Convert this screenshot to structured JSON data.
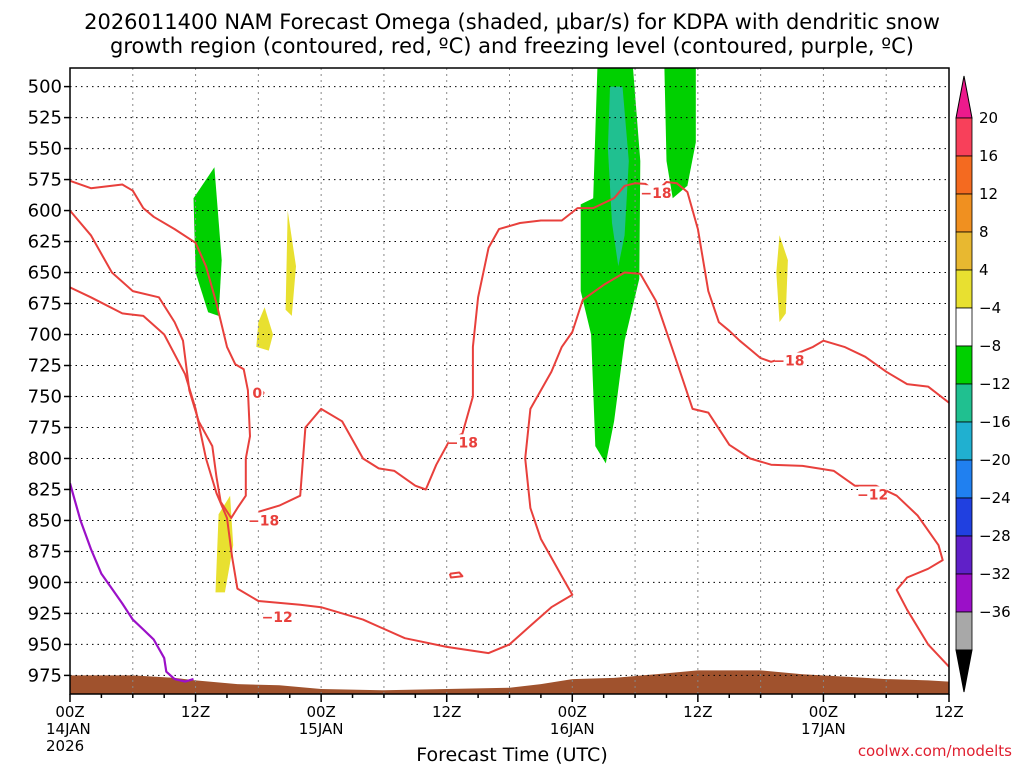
{
  "title_line1": "2026011400 NAM Forecast Omega (shaded, μbar/s) for KDPA with dendritic snow",
  "title_line2": "growth region (contoured, red, ºC) and freezing level (contoured, purple, ºC)",
  "x_axis_title": "Forecast Time (UTC)",
  "credit": "coolwx.com/modelts",
  "colors": {
    "dgz_contour": "#e8403c",
    "freezing_level": "#9b10c8",
    "terrain": "#a0522d",
    "omega_green": "#00d000",
    "omega_teal": "#20c090",
    "omega_yellow": "#e8e030",
    "grid": "#888888"
  },
  "chart_data": {
    "type": "heatmap",
    "x_unit": "forecast hour from 2026-01-14 00Z",
    "xlim": [
      0,
      84
    ],
    "ylim": [
      990,
      485
    ],
    "y_ticks": [
      500,
      525,
      550,
      575,
      600,
      625,
      650,
      675,
      700,
      725,
      750,
      775,
      800,
      825,
      850,
      875,
      900,
      925,
      950,
      975
    ],
    "x_ticks": [
      {
        "x": 0,
        "l1": "00Z",
        "l2": "14JAN",
        "l3": "2026"
      },
      {
        "x": 12,
        "l1": "12Z",
        "l2": "",
        "l3": ""
      },
      {
        "x": 24,
        "l1": "00Z",
        "l2": "15JAN",
        "l3": ""
      },
      {
        "x": 36,
        "l1": "12Z",
        "l2": "",
        "l3": ""
      },
      {
        "x": 48,
        "l1": "00Z",
        "l2": "16JAN",
        "l3": ""
      },
      {
        "x": 60,
        "l1": "12Z",
        "l2": "",
        "l3": ""
      },
      {
        "x": 72,
        "l1": "00Z",
        "l2": "17JAN",
        "l3": ""
      },
      {
        "x": 84,
        "l1": "12Z",
        "l2": "",
        "l3": ""
      }
    ],
    "colorbar": {
      "labels": [
        "20",
        "16",
        "12",
        "8",
        "4",
        "−4",
        "−8",
        "−12",
        "−16",
        "−20",
        "−24",
        "−28",
        "−32",
        "−36"
      ],
      "colors": [
        "#f8405a",
        "#f46a20",
        "#f09020",
        "#e8b830",
        "#e8e030",
        "#ffffff",
        "#00d000",
        "#20c090",
        "#20b0d0",
        "#2080f0",
        "#2040e0",
        "#6020c8",
        "#9b10c8",
        "#a8a8a8"
      ],
      "top_arrow": "#ec1a8c",
      "bottom_arrow": "#000000"
    },
    "omega_regions": [
      {
        "color": "omega_green",
        "points": [
          [
            11.8,
            590
          ],
          [
            13.8,
            565
          ],
          [
            14.5,
            640
          ],
          [
            14.2,
            685
          ],
          [
            13.2,
            682
          ],
          [
            12,
            650
          ]
        ]
      },
      {
        "color": "omega_yellow",
        "points": [
          [
            20.8,
            600
          ],
          [
            21.6,
            645
          ],
          [
            21.2,
            685
          ],
          [
            20.6,
            680
          ]
        ]
      },
      {
        "color": "omega_yellow",
        "points": [
          [
            18.6,
            678
          ],
          [
            19.4,
            700
          ],
          [
            19.0,
            713
          ],
          [
            17.8,
            710
          ],
          [
            18.0,
            690
          ]
        ]
      },
      {
        "color": "omega_yellow",
        "points": [
          [
            14.2,
            845
          ],
          [
            15.3,
            830
          ],
          [
            15.6,
            870
          ],
          [
            14.8,
            908
          ],
          [
            13.9,
            908
          ]
        ]
      },
      {
        "color": "omega_green",
        "points": [
          [
            50.4,
            485
          ],
          [
            53.8,
            485
          ],
          [
            54.5,
            560
          ],
          [
            54.4,
            655
          ],
          [
            53.0,
            705
          ],
          [
            52.0,
            770
          ],
          [
            51.2,
            804
          ],
          [
            50.2,
            790
          ],
          [
            49.8,
            700
          ],
          [
            48.8,
            665
          ],
          [
            48.8,
            595
          ],
          [
            50.0,
            590
          ]
        ]
      },
      {
        "color": "omega_teal",
        "points": [
          [
            51.6,
            500
          ],
          [
            52.8,
            500
          ],
          [
            53.4,
            560
          ],
          [
            53.0,
            620
          ],
          [
            52.4,
            645
          ],
          [
            51.8,
            610
          ],
          [
            51.4,
            550
          ]
        ]
      },
      {
        "color": "omega_green",
        "points": [
          [
            56.8,
            485
          ],
          [
            59.8,
            485
          ],
          [
            59.8,
            545
          ],
          [
            59.0,
            580
          ],
          [
            57.6,
            590
          ],
          [
            57.0,
            560
          ]
        ]
      },
      {
        "color": "omega_yellow",
        "points": [
          [
            67.8,
            620
          ],
          [
            68.6,
            640
          ],
          [
            68.4,
            683
          ],
          [
            67.8,
            690
          ],
          [
            67.5,
            650
          ]
        ]
      }
    ],
    "dgz_contours": [
      {
        "points": [
          [
            0,
            576
          ],
          [
            2,
            582
          ],
          [
            4,
            580
          ],
          [
            5,
            579
          ],
          [
            6,
            584
          ],
          [
            7,
            598
          ],
          [
            8,
            605
          ],
          [
            10,
            615
          ],
          [
            12,
            626
          ],
          [
            13,
            645
          ],
          [
            14,
            675
          ],
          [
            15,
            710
          ],
          [
            15.8,
            724
          ],
          [
            16.6,
            728
          ],
          [
            17,
            745
          ],
          [
            17.2,
            782
          ],
          [
            16.8,
            800
          ],
          [
            16.8,
            830
          ],
          [
            16,
            840
          ],
          [
            15.4,
            848
          ],
          [
            14.4,
            835
          ],
          [
            14,
            815
          ],
          [
            13.6,
            790
          ],
          [
            12.3,
            770
          ],
          [
            11.4,
            745
          ],
          [
            10.8,
            705
          ],
          [
            10,
            690
          ],
          [
            8.5,
            670
          ],
          [
            6,
            665
          ],
          [
            4,
            650
          ],
          [
            2,
            620
          ],
          [
            0,
            600
          ]
        ]
      },
      {
        "points": [
          [
            18,
            742
          ],
          [
            18.5,
            747
          ],
          [
            18.2,
            752
          ],
          [
            17.9,
            748
          ],
          [
            18,
            742
          ]
        ]
      },
      {
        "points": [
          [
            0,
            662
          ],
          [
            2,
            670
          ],
          [
            5,
            683
          ],
          [
            7,
            685
          ],
          [
            9,
            700
          ],
          [
            11,
            732
          ],
          [
            12,
            760
          ],
          [
            13,
            800
          ],
          [
            14,
            828
          ],
          [
            15,
            848
          ],
          [
            15.5,
            880
          ],
          [
            16,
            905
          ],
          [
            18,
            915
          ],
          [
            22,
            918
          ],
          [
            24,
            920
          ],
          [
            28,
            930
          ],
          [
            32,
            945
          ],
          [
            36,
            952
          ],
          [
            40,
            957
          ],
          [
            42,
            950
          ],
          [
            44,
            935
          ],
          [
            46,
            920
          ],
          [
            47,
            915
          ],
          [
            48,
            910
          ],
          [
            47,
            895
          ],
          [
            46,
            880
          ],
          [
            45,
            865
          ],
          [
            44,
            840
          ],
          [
            43.5,
            800
          ],
          [
            44,
            760
          ],
          [
            46,
            730
          ],
          [
            47,
            710
          ],
          [
            48,
            698
          ],
          [
            49,
            672
          ],
          [
            51,
            660
          ],
          [
            53,
            650
          ],
          [
            54.5,
            651
          ],
          [
            56,
            673
          ],
          [
            57.5,
            710
          ],
          [
            58.5,
            735
          ],
          [
            59.5,
            760
          ],
          [
            61,
            763
          ],
          [
            63,
            789
          ],
          [
            65,
            800
          ],
          [
            67,
            805
          ],
          [
            70,
            806
          ],
          [
            73,
            810
          ],
          [
            75,
            822
          ],
          [
            77,
            822
          ],
          [
            79,
            830
          ],
          [
            81,
            846
          ],
          [
            83,
            870
          ],
          [
            83.4,
            882
          ],
          [
            82,
            889
          ],
          [
            80,
            896
          ],
          [
            79,
            906
          ],
          [
            80,
            922
          ],
          [
            82,
            950
          ],
          [
            84,
            968
          ]
        ]
      },
      {
        "points": [
          [
            36.3,
            893
          ],
          [
            37.2,
            892
          ],
          [
            37.5,
            895
          ],
          [
            36.4,
            896
          ],
          [
            36.3,
            893
          ]
        ]
      },
      {
        "points": [
          [
            18,
            843
          ],
          [
            20,
            838
          ],
          [
            22,
            830
          ],
          [
            22.5,
            775
          ],
          [
            24,
            760
          ],
          [
            26,
            770
          ],
          [
            28,
            800
          ],
          [
            29.5,
            808
          ],
          [
            31,
            810
          ],
          [
            33,
            822
          ],
          [
            34,
            825
          ],
          [
            35,
            805
          ],
          [
            36.3,
            785
          ],
          [
            37.5,
            780
          ],
          [
            38.5,
            750
          ],
          [
            38.5,
            710
          ],
          [
            39,
            670
          ],
          [
            40,
            630
          ],
          [
            41,
            615
          ],
          [
            43,
            610
          ],
          [
            45,
            608
          ],
          [
            47,
            608
          ],
          [
            48.5,
            598
          ],
          [
            50,
            598
          ],
          [
            51,
            594
          ],
          [
            52,
            590
          ],
          [
            53,
            580
          ],
          [
            54,
            578
          ],
          [
            55,
            578.5
          ],
          [
            56,
            585
          ],
          [
            57,
            577
          ],
          [
            58,
            578
          ],
          [
            59,
            585
          ],
          [
            60,
            615
          ],
          [
            61,
            665
          ],
          [
            62,
            690
          ],
          [
            63,
            697
          ],
          [
            64,
            705
          ],
          [
            65,
            712
          ],
          [
            66,
            719
          ],
          [
            67,
            722
          ],
          [
            69,
            717
          ],
          [
            71,
            710
          ],
          [
            72,
            705
          ],
          [
            74,
            710
          ],
          [
            76,
            718
          ],
          [
            78,
            730
          ],
          [
            80,
            740
          ],
          [
            82,
            742
          ],
          [
            84,
            755
          ]
        ]
      }
    ],
    "dgz_labels": [
      {
        "text": "−18",
        "x": 56.0,
        "y": 586
      },
      {
        "text": "−18",
        "x": 68.7,
        "y": 721
      },
      {
        "text": "−18",
        "x": 37.5,
        "y": 787
      },
      {
        "text": "−18",
        "x": 18.5,
        "y": 850
      },
      {
        "text": "−12",
        "x": 19.8,
        "y": 928
      },
      {
        "text": "−12",
        "x": 76.7,
        "y": 829
      },
      {
        "text": "0",
        "x": 17.9,
        "y": 747
      }
    ],
    "freezing_level": {
      "points": [
        [
          0,
          820
        ],
        [
          1,
          850
        ],
        [
          2,
          873
        ],
        [
          3,
          893
        ],
        [
          4,
          905
        ],
        [
          5,
          917
        ],
        [
          6,
          930
        ],
        [
          7,
          938
        ],
        [
          8,
          946
        ],
        [
          9,
          961
        ],
        [
          9.2,
          972
        ],
        [
          10,
          978
        ],
        [
          11,
          980
        ],
        [
          11.8,
          978
        ]
      ]
    },
    "terrain_surface": {
      "points": [
        [
          0,
          975
        ],
        [
          6,
          975
        ],
        [
          10,
          977
        ],
        [
          12,
          979
        ],
        [
          16,
          982
        ],
        [
          20,
          983
        ],
        [
          24,
          986
        ],
        [
          30,
          987
        ],
        [
          36,
          986
        ],
        [
          42,
          985
        ],
        [
          45,
          982
        ],
        [
          48,
          978
        ],
        [
          52,
          977
        ],
        [
          56,
          974
        ],
        [
          60,
          971
        ],
        [
          66,
          971
        ],
        [
          70,
          974
        ],
        [
          74,
          976
        ],
        [
          78,
          978
        ],
        [
          82,
          979
        ],
        [
          84,
          980
        ]
      ],
      "bottom": 990
    }
  }
}
